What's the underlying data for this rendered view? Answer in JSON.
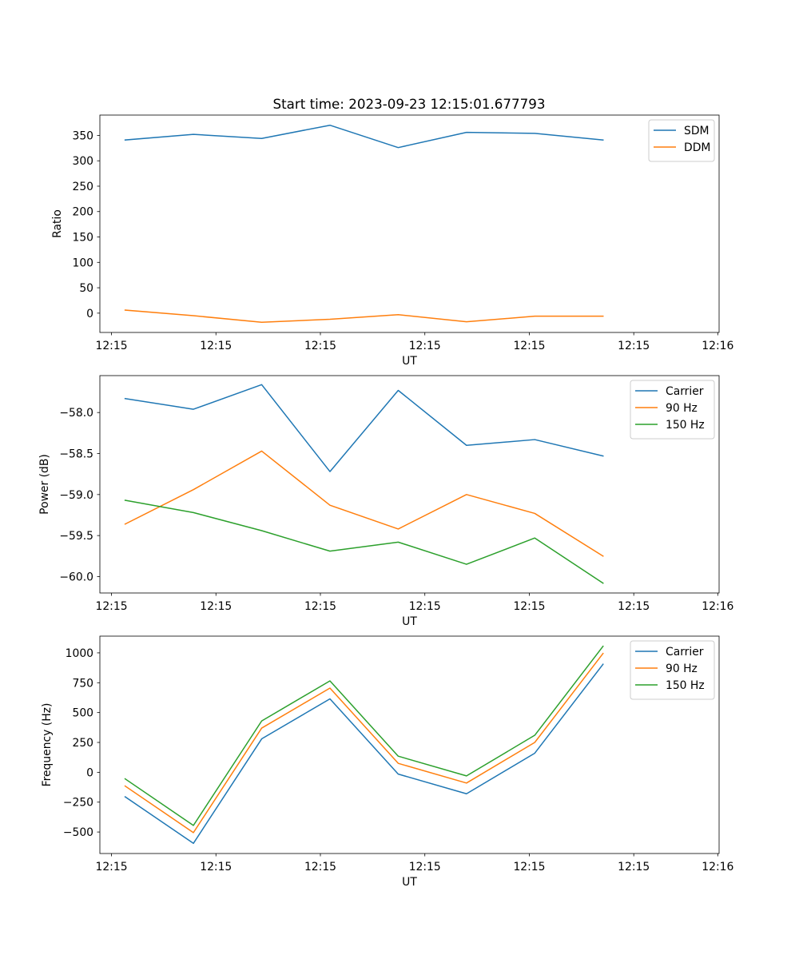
{
  "figure": {
    "title": "Start time: 2023-09-23 12:15:01.677793"
  },
  "chart_data": [
    {
      "type": "line",
      "title": "Start time: 2023-09-23 12:15:01.677793",
      "xlabel": "UT",
      "ylabel": "Ratio",
      "x_index": [
        0,
        1,
        2,
        3,
        4,
        5,
        6,
        7
      ],
      "xlim": [
        -0.37,
        8.7
      ],
      "x_ticks": [
        -0.2,
        1.33,
        2.86,
        4.39,
        5.92,
        7.45,
        8.68
      ],
      "x_tick_labels": [
        "12:15",
        "12:15",
        "12:15",
        "12:15",
        "12:15",
        "12:15",
        "12:16"
      ],
      "ylim": [
        -38,
        390
      ],
      "y_ticks": [
        0,
        50,
        100,
        150,
        200,
        250,
        300,
        350
      ],
      "y_tick_labels": [
        "0",
        "50",
        "100",
        "150",
        "200",
        "250",
        "300",
        "350"
      ],
      "legend_position": "top-right",
      "series": [
        {
          "name": "SDM",
          "color": "#1f77b4",
          "values": [
            341,
            352,
            344,
            370,
            326,
            356,
            354,
            341
          ]
        },
        {
          "name": "DDM",
          "color": "#ff7f0e",
          "values": [
            6,
            -5,
            -18,
            -12,
            -3,
            -17,
            -6,
            -6
          ]
        }
      ]
    },
    {
      "type": "line",
      "title": "",
      "xlabel": "UT",
      "ylabel": "Power (dB)",
      "x_index": [
        0,
        1,
        2,
        3,
        4,
        5,
        6,
        7
      ],
      "xlim": [
        -0.37,
        8.7
      ],
      "x_ticks": [
        -0.2,
        1.33,
        2.86,
        4.39,
        5.92,
        7.45,
        8.68
      ],
      "x_tick_labels": [
        "12:15",
        "12:15",
        "12:15",
        "12:15",
        "12:15",
        "12:15",
        "12:16"
      ],
      "ylim": [
        -60.2,
        -57.55
      ],
      "y_ticks": [
        -60.0,
        -59.5,
        -59.0,
        -58.5,
        -58.0
      ],
      "y_tick_labels": [
        "−60.0",
        "−59.5",
        "−59.0",
        "−58.5",
        "−58.0"
      ],
      "legend_position": "top-right",
      "series": [
        {
          "name": "Carrier",
          "color": "#1f77b4",
          "values": [
            -57.83,
            -57.96,
            -57.66,
            -58.72,
            -57.73,
            -58.4,
            -58.33,
            -58.53
          ]
        },
        {
          "name": "90 Hz",
          "color": "#ff7f0e",
          "values": [
            -59.36,
            -58.94,
            -58.47,
            -59.13,
            -59.42,
            -59.0,
            -59.23,
            -59.75
          ]
        },
        {
          "name": "150 Hz",
          "color": "#2ca02c",
          "values": [
            -59.07,
            -59.22,
            -59.44,
            -59.69,
            -59.58,
            -59.85,
            -59.53,
            -60.08
          ]
        }
      ]
    },
    {
      "type": "line",
      "title": "",
      "xlabel": "UT",
      "ylabel": "Frequency (Hz)",
      "x_index": [
        0,
        1,
        2,
        3,
        4,
        5,
        6,
        7
      ],
      "xlim": [
        -0.37,
        8.7
      ],
      "x_ticks": [
        -0.2,
        1.33,
        2.86,
        4.39,
        5.92,
        7.45,
        8.68
      ],
      "x_tick_labels": [
        "12:15",
        "12:15",
        "12:15",
        "12:15",
        "12:15",
        "12:15",
        "12:16"
      ],
      "ylim": [
        -680,
        1140
      ],
      "y_ticks": [
        -500,
        -250,
        0,
        250,
        500,
        750,
        1000
      ],
      "y_tick_labels": [
        "−500",
        "−250",
        "0",
        "250",
        "500",
        "750",
        "1000"
      ],
      "legend_position": "top-right",
      "series": [
        {
          "name": "Carrier",
          "color": "#1f77b4",
          "values": [
            -205,
            -595,
            280,
            615,
            -15,
            -180,
            160,
            905
          ]
        },
        {
          "name": "90 Hz",
          "color": "#ff7f0e",
          "values": [
            -115,
            -505,
            370,
            705,
            75,
            -90,
            250,
            995
          ]
        },
        {
          "name": "150 Hz",
          "color": "#2ca02c",
          "values": [
            -55,
            -445,
            430,
            765,
            135,
            -30,
            310,
            1055
          ]
        }
      ]
    }
  ]
}
